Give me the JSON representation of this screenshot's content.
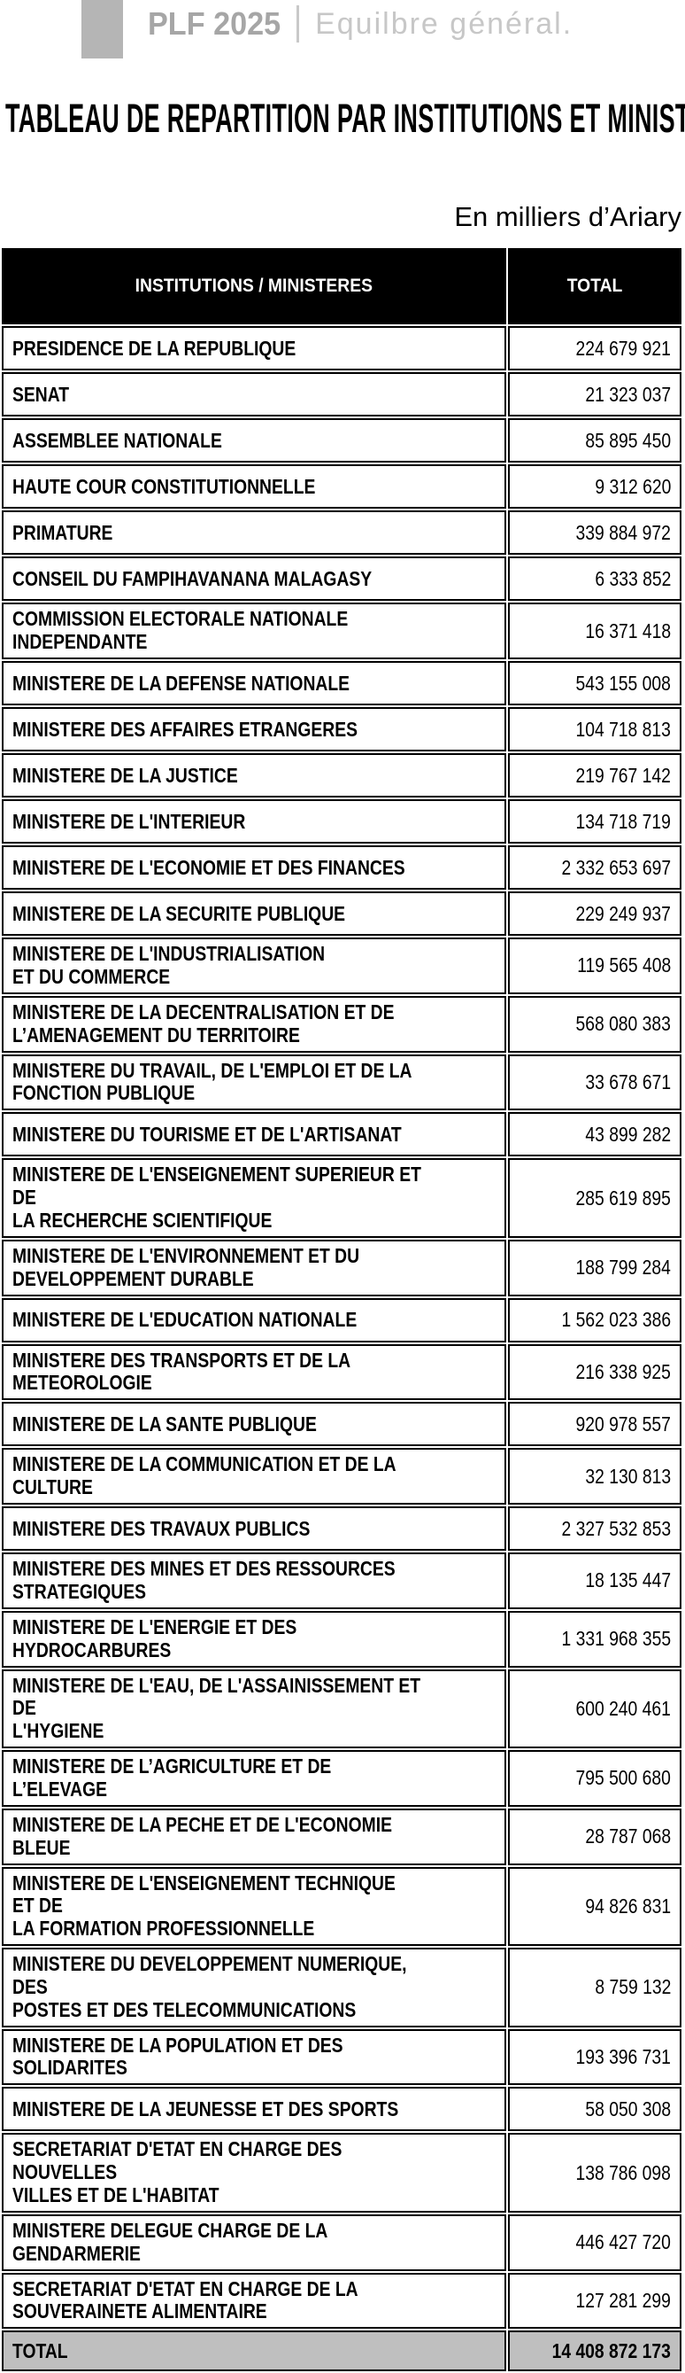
{
  "page_header": {
    "brand": "PLF 2025",
    "section": "Equilbre général.",
    "accent_color": "#b5b5b5",
    "brand_color": "#a6a6a6",
    "section_color": "#c7c7c7"
  },
  "title": "TABLEAU DE REPARTITION PAR INSTITUTIONS ET MINISTERES",
  "unit_note": "En milliers d’Ariary",
  "table": {
    "columns": [
      "INSTITUTIONS / MINISTERES",
      "TOTAL"
    ],
    "colors": {
      "header_bg": "#000000",
      "header_text": "#ffffff",
      "total_row_bg": "#bfbfbf",
      "border": "#000000"
    },
    "rows": [
      {
        "label": "PRESIDENCE DE LA REPUBLIQUE",
        "value": "224 679 921"
      },
      {
        "label": "SENAT",
        "value": "21 323 037"
      },
      {
        "label": "ASSEMBLEE NATIONALE",
        "value": "85 895 450"
      },
      {
        "label": "HAUTE COUR CONSTITUTIONNELLE",
        "value": "9 312 620"
      },
      {
        "label": "PRIMATURE",
        "value": "339 884 972"
      },
      {
        "label": "CONSEIL DU FAMPIHAVANANA MALAGASY",
        "value": "6 333 852"
      },
      {
        "label": "COMMISSION ELECTORALE NATIONALE\nINDEPENDANTE",
        "value": "16 371 418"
      },
      {
        "label": "MINISTERE DE LA DEFENSE NATIONALE",
        "value": "543 155 008"
      },
      {
        "label": "MINISTERE DES AFFAIRES ETRANGERES",
        "value": "104 718 813"
      },
      {
        "label": "MINISTERE DE LA JUSTICE",
        "value": "219 767 142"
      },
      {
        "label": "MINISTERE DE L'INTERIEUR",
        "value": "134 718 719"
      },
      {
        "label": "MINISTERE DE L'ECONOMIE ET DES FINANCES",
        "value": "2 332 653 697"
      },
      {
        "label": "MINISTERE DE LA SECURITE PUBLIQUE",
        "value": "229 249 937"
      },
      {
        "label": "MINISTERE DE L'INDUSTRIALISATION\nET DU COMMERCE",
        "value": "119 565 408"
      },
      {
        "label": "MINISTERE DE LA DECENTRALISATION ET DE\nL’AMENAGEMENT DU TERRITOIRE",
        "value": "568 080 383"
      },
      {
        "label": "MINISTERE DU TRAVAIL, DE L'EMPLOI ET DE LA\nFONCTION PUBLIQUE",
        "value": "33 678 671"
      },
      {
        "label": "MINISTERE DU TOURISME ET DE L'ARTISANAT",
        "value": "43 899 282"
      },
      {
        "label": "MINISTERE DE L'ENSEIGNEMENT SUPERIEUR ET DE\nLA RECHERCHE SCIENTIFIQUE",
        "value": "285 619 895"
      },
      {
        "label": "MINISTERE DE L'ENVIRONNEMENT ET DU\nDEVELOPPEMENT DURABLE",
        "value": "188 799 284"
      },
      {
        "label": "MINISTERE DE L'EDUCATION NATIONALE",
        "value": "1 562 023 386"
      },
      {
        "label": "MINISTERE DES TRANSPORTS ET DE LA\nMETEOROLOGIE",
        "value": "216 338 925"
      },
      {
        "label": "MINISTERE DE LA SANTE PUBLIQUE",
        "value": "920 978 557"
      },
      {
        "label": "MINISTERE DE LA COMMUNICATION ET DE LA\nCULTURE",
        "value": "32 130 813"
      },
      {
        "label": "MINISTERE DES TRAVAUX PUBLICS",
        "value": "2 327 532 853"
      },
      {
        "label": "MINISTERE DES MINES ET DES RESSOURCES\nSTRATEGIQUES",
        "value": "18 135 447"
      },
      {
        "label": "MINISTERE DE L'ENERGIE ET DES HYDROCARBURES",
        "value": "1 331 968 355"
      },
      {
        "label": "MINISTERE DE L'EAU, DE L'ASSAINISSEMENT ET DE\nL'HYGIENE",
        "value": "600 240 461"
      },
      {
        "label": "MINISTERE DE L’AGRICULTURE ET DE L’ELEVAGE",
        "value": "795 500 680"
      },
      {
        "label": "MINISTERE DE LA PECHE ET DE L'ECONOMIE BLEUE",
        "value": "28 787 068"
      },
      {
        "label": "MINISTERE DE L'ENSEIGNEMENT TECHNIQUE ET DE\nLA FORMATION PROFESSIONNELLE",
        "value": "94 826 831"
      },
      {
        "label": "MINISTERE DU DEVELOPPEMENT NUMERIQUE, DES\nPOSTES ET DES TELECOMMUNICATIONS",
        "value": "8 759 132"
      },
      {
        "label": "MINISTERE DE LA POPULATION ET DES\nSOLIDARITES",
        "value": "193 396 731"
      },
      {
        "label": "MINISTERE DE LA JEUNESSE ET DES SPORTS",
        "value": "58 050 308"
      },
      {
        "label": "SECRETARIAT D'ETAT EN CHARGE DES NOUVELLES\nVILLES ET DE L'HABITAT",
        "value": "138 786 098"
      },
      {
        "label": "MINISTERE DELEGUE CHARGE DE LA GENDARMERIE",
        "value": "446 427 720"
      },
      {
        "label": "SECRETARIAT D'ETAT EN CHARGE DE LA\nSOUVERAINETE ALIMENTAIRE",
        "value": "127 281 299"
      }
    ],
    "total": {
      "label": "TOTAL",
      "value": "14 408 872 173"
    }
  }
}
